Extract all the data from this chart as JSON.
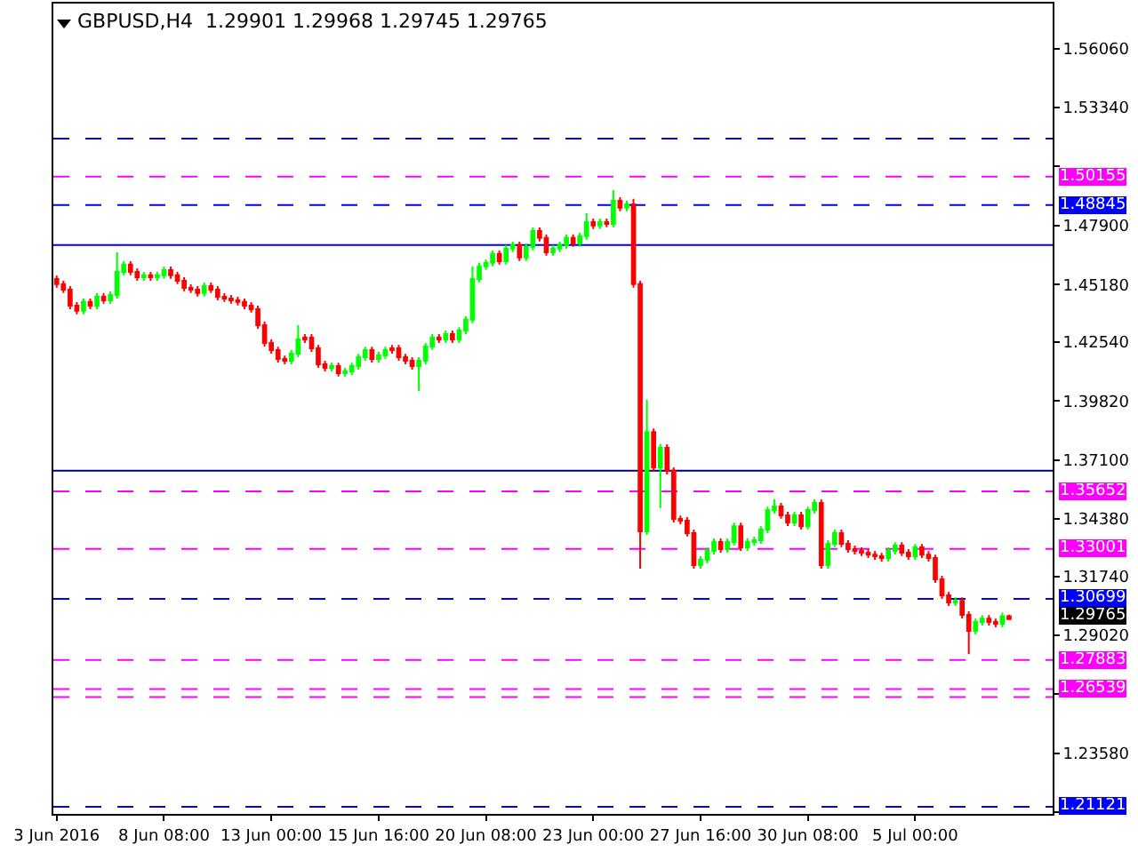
{
  "chart_data": {
    "type": "candlestick",
    "title": "GBPUSD,H4  1.29901 1.29968 1.29745 1.29765",
    "categories": [
      "3 Jun 2016",
      null,
      null,
      null,
      null,
      null,
      null,
      null,
      null,
      null,
      null,
      null,
      null,
      null,
      null,
      null,
      "8 Jun 08:00",
      null,
      null,
      null,
      null,
      null,
      null,
      null,
      null,
      null,
      null,
      null,
      null,
      null,
      null,
      null,
      "13 Jun 00:00",
      null,
      null,
      null,
      null,
      null,
      null,
      null,
      null,
      null,
      null,
      null,
      null,
      null,
      null,
      null,
      "15 Jun 16:00",
      null,
      null,
      null,
      null,
      null,
      null,
      null,
      null,
      null,
      null,
      null,
      null,
      null,
      null,
      null,
      "20 Jun 08:00",
      null,
      null,
      null,
      null,
      null,
      null,
      null,
      null,
      null,
      null,
      null,
      null,
      null,
      null,
      null,
      "23 Jun 00:00",
      null,
      null,
      null,
      null,
      null,
      null,
      null,
      null,
      null,
      null,
      null,
      null,
      null,
      null,
      null,
      "27 Jun 16:00",
      null,
      null,
      null,
      null,
      null,
      null,
      null,
      null,
      null,
      null,
      null,
      null,
      null,
      null,
      null,
      "30 Jun 08:00",
      null,
      null,
      null,
      null,
      null,
      null,
      null,
      null,
      null,
      null,
      null,
      null,
      null,
      null,
      null,
      "5 Jul 00:00",
      null,
      null,
      null,
      null,
      null,
      null,
      null,
      null,
      null,
      null,
      null,
      null,
      null,
      null,
      null,
      null,
      null,
      null,
      null,
      null
    ],
    "ohlc": [
      [
        1.4544,
        1.456,
        1.4504,
        1.452
      ],
      [
        1.452,
        1.4536,
        1.4479,
        1.4495
      ],
      [
        1.4495,
        1.4511,
        1.4405,
        1.4421
      ],
      [
        1.4421,
        1.4437,
        1.4381,
        1.4397
      ],
      [
        1.4397,
        1.4454,
        1.4381,
        1.4438
      ],
      [
        1.4438,
        1.4454,
        1.4405,
        1.4421
      ],
      [
        1.4421,
        1.4478,
        1.4405,
        1.4462
      ],
      [
        1.4462,
        1.4478,
        1.443,
        1.4446
      ],
      [
        1.4446,
        1.4486,
        1.443,
        1.447
      ],
      [
        1.447,
        1.4667,
        1.4454,
        1.4577
      ],
      [
        1.4577,
        1.4626,
        1.4561,
        1.461
      ],
      [
        1.461,
        1.4626,
        1.4561,
        1.4577
      ],
      [
        1.4577,
        1.4593,
        1.4536,
        1.4552
      ],
      [
        1.4552,
        1.4577,
        1.4536,
        1.4561
      ],
      [
        1.4561,
        1.4577,
        1.4536,
        1.4552
      ],
      [
        1.4552,
        1.4577,
        1.4536,
        1.4561
      ],
      [
        1.4561,
        1.4601,
        1.4545,
        1.4585
      ],
      [
        1.4585,
        1.4601,
        1.4545,
        1.4561
      ],
      [
        1.4561,
        1.4577,
        1.452,
        1.4536
      ],
      [
        1.4536,
        1.4552,
        1.4487,
        1.4503
      ],
      [
        1.4503,
        1.4519,
        1.4479,
        1.4495
      ],
      [
        1.4495,
        1.4511,
        1.4463,
        1.4479
      ],
      [
        1.4479,
        1.4527,
        1.4463,
        1.4511
      ],
      [
        1.4511,
        1.4527,
        1.4479,
        1.4495
      ],
      [
        1.4495,
        1.4511,
        1.4446,
        1.4462
      ],
      [
        1.4462,
        1.4478,
        1.4438,
        1.4454
      ],
      [
        1.4454,
        1.447,
        1.443,
        1.4446
      ],
      [
        1.4446,
        1.4462,
        1.4422,
        1.4438
      ],
      [
        1.4438,
        1.4454,
        1.4405,
        1.4421
      ],
      [
        1.4421,
        1.4437,
        1.4389,
        1.4405
      ],
      [
        1.4405,
        1.4421,
        1.4315,
        1.4331
      ],
      [
        1.4331,
        1.4347,
        1.4233,
        1.4249
      ],
      [
        1.4249,
        1.4265,
        1.42,
        1.4216
      ],
      [
        1.4216,
        1.4232,
        1.4159,
        1.4175
      ],
      [
        1.4175,
        1.4191,
        1.4151,
        1.4167
      ],
      [
        1.4167,
        1.4216,
        1.4151,
        1.42
      ],
      [
        1.42,
        1.4331,
        1.4184,
        1.4265
      ],
      [
        1.4265,
        1.429,
        1.4249,
        1.4274
      ],
      [
        1.4274,
        1.429,
        1.4208,
        1.4224
      ],
      [
        1.4224,
        1.424,
        1.4135,
        1.4151
      ],
      [
        1.4151,
        1.4167,
        1.4118,
        1.4134
      ],
      [
        1.4134,
        1.4158,
        1.4118,
        1.4142
      ],
      [
        1.4142,
        1.4158,
        1.4094,
        1.411
      ],
      [
        1.411,
        1.4134,
        1.4094,
        1.4118
      ],
      [
        1.4118,
        1.4158,
        1.4102,
        1.4142
      ],
      [
        1.4142,
        1.4199,
        1.4126,
        1.4183
      ],
      [
        1.4183,
        1.4232,
        1.4167,
        1.4216
      ],
      [
        1.4216,
        1.4232,
        1.4159,
        1.4175
      ],
      [
        1.4175,
        1.4208,
        1.4159,
        1.4192
      ],
      [
        1.4192,
        1.4232,
        1.4176,
        1.4216
      ],
      [
        1.4216,
        1.424,
        1.42,
        1.4224
      ],
      [
        1.4224,
        1.424,
        1.4167,
        1.4183
      ],
      [
        1.4183,
        1.4199,
        1.4151,
        1.4167
      ],
      [
        1.4167,
        1.4183,
        1.4126,
        1.4142
      ],
      [
        1.4142,
        1.4183,
        1.4028,
        1.4167
      ],
      [
        1.4167,
        1.4249,
        1.4151,
        1.4233
      ],
      [
        1.4233,
        1.429,
        1.4217,
        1.4274
      ],
      [
        1.4274,
        1.429,
        1.4249,
        1.4265
      ],
      [
        1.4265,
        1.4306,
        1.4249,
        1.429
      ],
      [
        1.429,
        1.4306,
        1.4249,
        1.4265
      ],
      [
        1.4265,
        1.4322,
        1.4249,
        1.4306
      ],
      [
        1.4306,
        1.4372,
        1.429,
        1.4356
      ],
      [
        1.4356,
        1.4602,
        1.434,
        1.4544
      ],
      [
        1.4544,
        1.4618,
        1.4528,
        1.4602
      ],
      [
        1.4602,
        1.4634,
        1.4586,
        1.4618
      ],
      [
        1.4618,
        1.4675,
        1.4602,
        1.4659
      ],
      [
        1.4659,
        1.4675,
        1.461,
        1.4626
      ],
      [
        1.4626,
        1.47,
        1.461,
        1.4684
      ],
      [
        1.4684,
        1.4716,
        1.4668,
        1.47
      ],
      [
        1.47,
        1.4716,
        1.4627,
        1.4643
      ],
      [
        1.4643,
        1.4708,
        1.4627,
        1.4692
      ],
      [
        1.4692,
        1.4781,
        1.4676,
        1.4765
      ],
      [
        1.4765,
        1.4781,
        1.4717,
        1.4733
      ],
      [
        1.4733,
        1.4749,
        1.4651,
        1.4667
      ],
      [
        1.4667,
        1.47,
        1.4651,
        1.4684
      ],
      [
        1.4684,
        1.4716,
        1.4668,
        1.47
      ],
      [
        1.47,
        1.4749,
        1.4684,
        1.4733
      ],
      [
        1.4733,
        1.4749,
        1.4692,
        1.4708
      ],
      [
        1.4708,
        1.4757,
        1.4692,
        1.4741
      ],
      [
        1.4741,
        1.4847,
        1.4725,
        1.4806
      ],
      [
        1.4806,
        1.4822,
        1.4774,
        1.479
      ],
      [
        1.479,
        1.4822,
        1.4774,
        1.4806
      ],
      [
        1.4806,
        1.4822,
        1.4782,
        1.4798
      ],
      [
        1.4798,
        1.4953,
        1.4782,
        1.4904
      ],
      [
        1.4904,
        1.492,
        1.4856,
        1.4872
      ],
      [
        1.4872,
        1.4904,
        1.4856,
        1.4888
      ],
      [
        1.4888,
        1.4913,
        1.4504,
        1.452
      ],
      [
        1.452,
        1.4536,
        1.3209,
        1.3381
      ],
      [
        1.3381,
        1.3987,
        1.3365,
        1.3839
      ],
      [
        1.3839,
        1.3855,
        1.366,
        1.3676
      ],
      [
        1.3676,
        1.3782,
        1.3488,
        1.3766
      ],
      [
        1.3766,
        1.3782,
        1.3643,
        1.366
      ],
      [
        1.366,
        1.3676,
        1.3422,
        1.3438
      ],
      [
        1.3438,
        1.3454,
        1.3414,
        1.343
      ],
      [
        1.343,
        1.3446,
        1.3357,
        1.3373
      ],
      [
        1.3373,
        1.3389,
        1.3209,
        1.3225
      ],
      [
        1.3225,
        1.3266,
        1.3209,
        1.325
      ],
      [
        1.325,
        1.3307,
        1.3234,
        1.3291
      ],
      [
        1.3291,
        1.3348,
        1.3275,
        1.3332
      ],
      [
        1.3332,
        1.3348,
        1.3283,
        1.3299
      ],
      [
        1.3299,
        1.3348,
        1.3283,
        1.3332
      ],
      [
        1.3332,
        1.3421,
        1.3316,
        1.3405
      ],
      [
        1.3405,
        1.3421,
        1.3291,
        1.3307
      ],
      [
        1.3307,
        1.3348,
        1.3291,
        1.3332
      ],
      [
        1.3332,
        1.3356,
        1.3316,
        1.334
      ],
      [
        1.334,
        1.3405,
        1.3324,
        1.3389
      ],
      [
        1.3389,
        1.3495,
        1.3373,
        1.3479
      ],
      [
        1.3479,
        1.3529,
        1.3463,
        1.3496
      ],
      [
        1.3496,
        1.3512,
        1.3439,
        1.3455
      ],
      [
        1.3455,
        1.3471,
        1.3406,
        1.3422
      ],
      [
        1.3422,
        1.3471,
        1.3406,
        1.3455
      ],
      [
        1.3455,
        1.3471,
        1.3389,
        1.3405
      ],
      [
        1.3405,
        1.3495,
        1.3389,
        1.3479
      ],
      [
        1.3479,
        1.3528,
        1.3463,
        1.3512
      ],
      [
        1.3512,
        1.3528,
        1.3209,
        1.3225
      ],
      [
        1.3225,
        1.334,
        1.3209,
        1.3324
      ],
      [
        1.3324,
        1.3389,
        1.3308,
        1.3373
      ],
      [
        1.3373,
        1.3389,
        1.3308,
        1.3324
      ],
      [
        1.3324,
        1.334,
        1.3283,
        1.3299
      ],
      [
        1.3299,
        1.3315,
        1.3275,
        1.3291
      ],
      [
        1.3291,
        1.3307,
        1.3267,
        1.3283
      ],
      [
        1.3283,
        1.3299,
        1.3258,
        1.3274
      ],
      [
        1.3274,
        1.329,
        1.325,
        1.3266
      ],
      [
        1.3266,
        1.3282,
        1.3242,
        1.3258
      ],
      [
        1.3258,
        1.3307,
        1.3242,
        1.3291
      ],
      [
        1.3291,
        1.3331,
        1.3275,
        1.3315
      ],
      [
        1.3315,
        1.3331,
        1.3267,
        1.3283
      ],
      [
        1.3283,
        1.3299,
        1.325,
        1.3266
      ],
      [
        1.3266,
        1.3323,
        1.325,
        1.3307
      ],
      [
        1.3307,
        1.3323,
        1.3258,
        1.3274
      ],
      [
        1.3274,
        1.329,
        1.3242,
        1.3258
      ],
      [
        1.3258,
        1.3274,
        1.3144,
        1.316
      ],
      [
        1.316,
        1.3176,
        1.307,
        1.3086
      ],
      [
        1.3086,
        1.3102,
        1.3037,
        1.3053
      ],
      [
        1.3053,
        1.3077,
        1.3037,
        1.3061
      ],
      [
        1.3061,
        1.3077,
        1.298,
        1.2996
      ],
      [
        1.2996,
        1.3012,
        1.2815,
        1.2922
      ],
      [
        1.2922,
        1.2979,
        1.2906,
        1.2963
      ],
      [
        1.2963,
        1.2995,
        1.2947,
        1.2979
      ],
      [
        1.2979,
        1.2995,
        1.2947,
        1.2963
      ],
      [
        1.2963,
        1.2979,
        1.2939,
        1.2955
      ],
      [
        1.2955,
        1.3006,
        1.2939,
        1.299
      ],
      [
        1.29901,
        1.29968,
        1.29745,
        1.29765
      ],
      null,
      null,
      null,
      null,
      null,
      null
    ],
    "colors": [
      "#ff0000",
      "#ff0000",
      "#ff0000",
      "#ff0000",
      "#00ff00",
      "#ff0000",
      "#00ff00",
      "#ff0000",
      "#00ff00",
      "#00ff00",
      "#00ff00",
      "#ff0000",
      "#ff0000",
      "#00ff00",
      "#ff0000",
      "#00ff00",
      "#00ff00",
      "#ff0000",
      "#ff0000",
      "#ff0000",
      "#ff0000",
      "#ff0000",
      "#00ff00",
      "#ff0000",
      "#ff0000",
      "#ff0000",
      "#ff0000",
      "#ff0000",
      "#ff0000",
      "#ff0000",
      "#ff0000",
      "#ff0000",
      "#ff0000",
      "#ff0000",
      "#ff0000",
      "#00ff00",
      "#00ff00",
      "#ff0000",
      "#ff0000",
      "#ff0000",
      "#ff0000",
      "#00ff00",
      "#ff0000",
      "#00ff00",
      "#00ff00",
      "#00ff00",
      "#00ff00",
      "#ff0000",
      "#00ff00",
      "#00ff00",
      "#ff0000",
      "#ff0000",
      "#ff0000",
      "#ff0000",
      "#00ff00",
      "#00ff00",
      "#00ff00",
      "#ff0000",
      "#00ff00",
      "#ff0000",
      "#00ff00",
      "#00ff00",
      "#00ff00",
      "#00ff00",
      "#00ff00",
      "#00ff00",
      "#ff0000",
      "#00ff00",
      "#00ff00",
      "#ff0000",
      "#00ff00",
      "#00ff00",
      "#ff0000",
      "#ff0000",
      "#00ff00",
      "#00ff00",
      "#00ff00",
      "#ff0000",
      "#00ff00",
      "#00ff00",
      "#ff0000",
      "#00ff00",
      "#ff0000",
      "#00ff00",
      "#ff0000",
      "#00ff00",
      "#ff0000",
      "#ff0000",
      "#00ff00",
      "#ff0000",
      "#00ff00",
      "#ff0000",
      "#ff0000",
      "#ff0000",
      "#ff0000",
      "#ff0000",
      "#00ff00",
      "#00ff00",
      "#00ff00",
      "#ff0000",
      "#00ff00",
      "#00ff00",
      "#ff0000",
      "#00ff00",
      "#00ff00",
      "#00ff00",
      "#00ff00",
      "#00ff00",
      "#ff0000",
      "#ff0000",
      "#00ff00",
      "#ff0000",
      "#00ff00",
      "#00ff00",
      "#ff0000",
      "#00ff00",
      "#00ff00",
      "#ff0000",
      "#ff0000",
      "#ff0000",
      "#ff0000",
      "#ff0000",
      "#ff0000",
      "#ff0000",
      "#00ff00",
      "#00ff00",
      "#ff0000",
      "#ff0000",
      "#00ff00",
      "#ff0000",
      "#ff0000",
      "#ff0000",
      "#ff0000",
      "#ff0000",
      "#00ff00",
      "#ff0000",
      "#ff0000",
      "#00ff00",
      "#00ff00",
      "#ff0000",
      "#ff0000",
      "#00ff00",
      "#ff0000",
      null,
      null,
      null,
      null,
      null,
      null
    ],
    "ylim": [
      1.2079,
      1.5813
    ],
    "yticks": [
      {
        "value": 1.5606,
        "label": "1.56060"
      },
      {
        "value": 1.5334,
        "label": "1.53340"
      },
      {
        "value": 1.5062,
        "label": null
      },
      {
        "value": 1.479,
        "label": "1.47900"
      },
      {
        "value": 1.4518,
        "label": "1.45180"
      },
      {
        "value": 1.4254,
        "label": "1.42540"
      },
      {
        "value": 1.3982,
        "label": "1.39820"
      },
      {
        "value": 1.371,
        "label": "1.37100"
      },
      {
        "value": 1.3438,
        "label": "1.34380"
      },
      {
        "value": 1.3174,
        "label": "1.31740"
      },
      {
        "value": 1.2902,
        "label": "1.29020"
      },
      {
        "value": 1.263,
        "label": null
      },
      {
        "value": 1.2358,
        "label": "1.23580"
      },
      {
        "value": 1.2086,
        "label": null
      }
    ],
    "ref_lines": [
      {
        "axis": "y",
        "value": 1.50155,
        "label": "1.50155",
        "color": "#ff00ff",
        "line_style": "dashed"
      },
      {
        "axis": "y",
        "value": 1.48845,
        "label": "1.48845",
        "color": "#0000ff",
        "line_style": "dashed"
      },
      {
        "axis": "y",
        "value": 1.5191,
        "color": "#0000ff",
        "line_style": "dashed"
      },
      {
        "axis": "y",
        "value": 1.47,
        "color": "#0000ff",
        "line_style": "solid"
      },
      {
        "axis": "y",
        "value": 1.366,
        "color": "#000080",
        "line_style": "solid"
      },
      {
        "axis": "y",
        "value": 1.35652,
        "label": "1.35652",
        "color": "#ff00ff",
        "line_style": "dashed"
      },
      {
        "axis": "y",
        "value": 1.33001,
        "label": "1.33001",
        "color": "#ff00ff",
        "line_style": "dashed"
      },
      {
        "axis": "y",
        "value": 1.30699,
        "label": "1.30699",
        "color": "#0000ff",
        "line_style": "dashed"
      },
      {
        "axis": "y",
        "value": 1.27883,
        "label": "1.27883",
        "color": "#ff00ff",
        "line_style": "dashed"
      },
      {
        "axis": "y",
        "value": 1.26539,
        "label": "1.26539",
        "color": "#ff00ff",
        "line_style": "dashed"
      },
      {
        "axis": "y",
        "value": 1.2617,
        "color": "#ff00ff",
        "line_style": "dashed"
      },
      {
        "axis": "y",
        "value": 1.21121,
        "label": "1.21121",
        "color": "#0000ff",
        "line_style": "dashed"
      }
    ],
    "annotations": [
      "1.29765"
    ]
  }
}
